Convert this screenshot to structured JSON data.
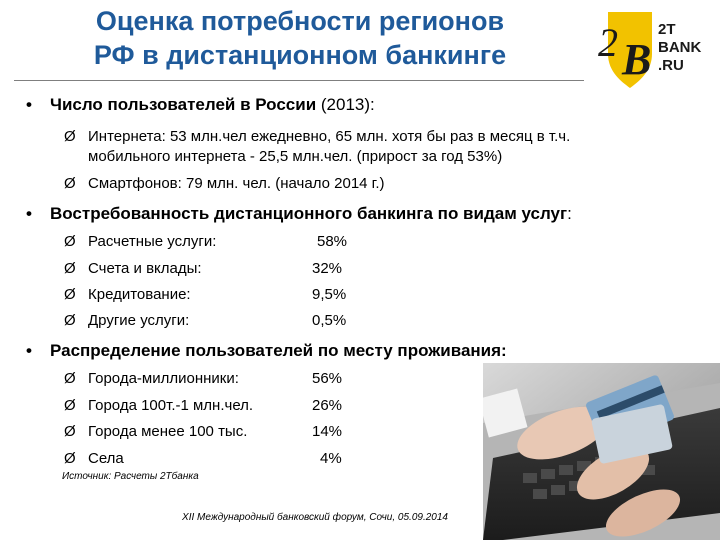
{
  "title": {
    "line1": "Оценка потребности регионов",
    "line2": "РФ в дистанционном банкинге"
  },
  "logo": {
    "numeral": "2",
    "letter": "B",
    "text1": "2T",
    "text2": "BANK",
    "text3": ".RU",
    "colors": {
      "shield": "#f2c200",
      "ink": "#1a1a1a"
    }
  },
  "bullets": [
    {
      "marker": "•",
      "bold": "Число пользователей в России",
      "normal": " (2013):",
      "items": [
        {
          "marker": "Ø",
          "line1": "Интернета: 53 млн.чел ежедневно, 65 млн. хотя бы раз в месяц в т.ч.",
          "line2": "мобильного интернета - 25,5 млн.чел. (прирост за год 53%)"
        },
        {
          "marker": "Ø",
          "line1": "Смартфонов: 79 млн. чел. (начало 2014 г.)"
        }
      ]
    },
    {
      "marker": "•",
      "bold": "Востребованность дистанционного банкинга по видам услуг",
      "normal": ":",
      "items": [
        {
          "marker": "Ø",
          "label": "Расчетные услуги:",
          "value": "58%"
        },
        {
          "marker": "Ø",
          "label": "Счета и вклады:",
          "value": "32%"
        },
        {
          "marker": "Ø",
          "label": "Кредитование:",
          "value": "9,5%"
        },
        {
          "marker": "Ø",
          "label": "Другие услуги:",
          "value": "0,5%"
        }
      ]
    },
    {
      "marker": "•",
      "bold": "Распределение пользователей по месту проживания:",
      "normal": "",
      "items": [
        {
          "marker": "Ø",
          "label": "Города-миллионники:",
          "value": "56%"
        },
        {
          "marker": "Ø",
          "label": "Города 100т.-1 млн.чел.",
          "value": "26%"
        },
        {
          "marker": "Ø",
          "label": "Города менее 100 тыс.",
          "value": "14%"
        },
        {
          "marker": "Ø",
          "label": "Села",
          "value": "4%"
        }
      ]
    }
  ],
  "source": "Источник: Расчеты 2Тбанка",
  "footer": "XII Международный банковский форум, Сочи, 05.09.2014",
  "colors": {
    "title": "#1f5a9a"
  }
}
